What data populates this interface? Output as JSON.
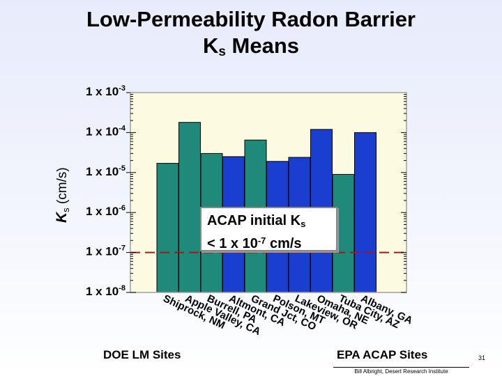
{
  "title": {
    "line1": "Low-Permeability Radon Barrier",
    "line2_main": "K",
    "line2_sub": "s",
    "line2_rest": " Means"
  },
  "colors": {
    "plot_bg": "#fcfbe2",
    "doe_bar": "#1f8a7a",
    "epa_bar": "#1a3fd0",
    "threshold": "#a01818",
    "axis_frame": "#a0a0a0"
  },
  "chart_data": {
    "type": "bar",
    "scale": "log",
    "ylim": [
      1e-08,
      0.001
    ],
    "yticks": [
      {
        "base": "1 x 10",
        "exp": "-3",
        "value": 0.001
      },
      {
        "base": "1 x 10",
        "exp": "-4",
        "value": 0.0001
      },
      {
        "base": "1 x 10",
        "exp": "-5",
        "value": 1e-05
      },
      {
        "base": "1 x 10",
        "exp": "-6",
        "value": 1e-06
      },
      {
        "base": "1 x 10",
        "exp": "-7",
        "value": 1e-07
      },
      {
        "base": "1 x 10",
        "exp": "-8",
        "value": 1e-08
      }
    ],
    "ylabel_main": "K",
    "ylabel_sub": "s",
    "ylabel_rest": " (cm/s)",
    "categories": [
      "Shiprock, NM",
      "Apple Valley, CA",
      "Burrell, PA",
      "Altmont, CA",
      "Grand Jct, CO",
      "Polson, MT",
      "Lakeview, OR",
      "Omaha, NE",
      "Tuba City, AZ",
      "Albany, GA"
    ],
    "values": [
      1.7e-05,
      0.00018,
      3e-05,
      2.5e-05,
      6.5e-05,
      1.9e-05,
      2.4e-05,
      0.00012,
      9e-06,
      0.0001
    ],
    "groups": [
      "DOE LM Sites",
      "DOE LM Sites",
      "DOE LM Sites",
      "EPA ACAP Sites",
      "DOE LM Sites",
      "EPA ACAP Sites",
      "EPA ACAP Sites",
      "EPA ACAP Sites",
      "DOE LM Sites",
      "EPA ACAP Sites"
    ],
    "threshold": 1e-07,
    "group_labels": [
      "DOE LM Sites",
      "EPA ACAP Sites"
    ],
    "annotation": {
      "line1_main": "ACAP initial K",
      "line1_sub": "s",
      "line2_main": "< 1 x 10",
      "line2_sup": "-7",
      "line2_rest": " cm/s"
    },
    "grid": false,
    "legend": "none"
  },
  "footer": {
    "credit": "Bill Albright, Desert Research Institute",
    "page_number": "31"
  }
}
